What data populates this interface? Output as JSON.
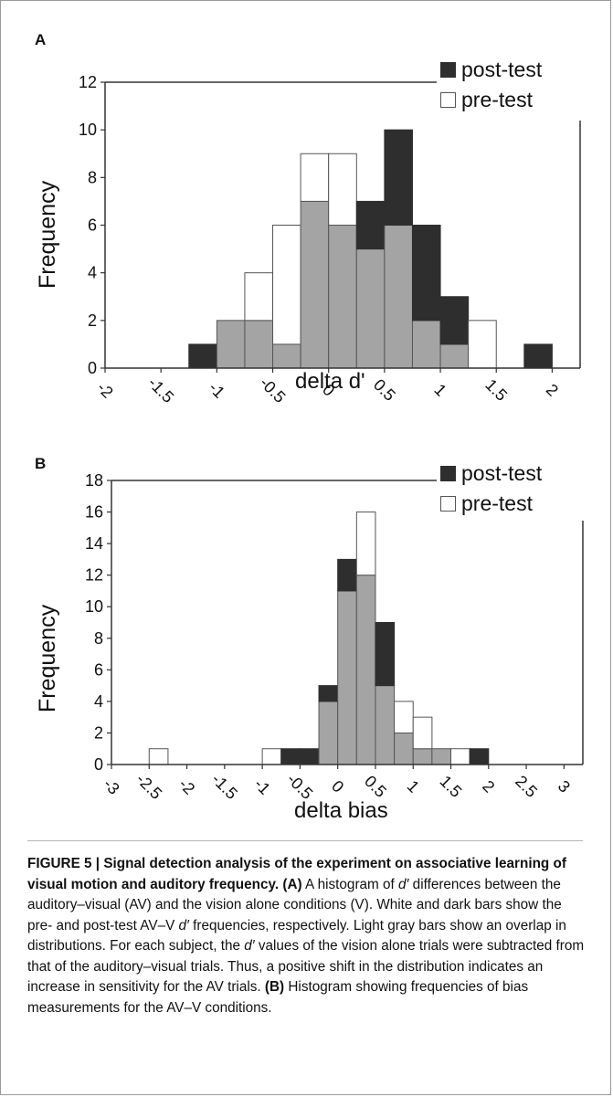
{
  "colors": {
    "post": "#2e2e2e",
    "pre": "#ffffff",
    "overlap": "#a4a4a4",
    "axis": "#333333"
  },
  "panels": {
    "a": {
      "letter": "A",
      "ylabel": "Frequency",
      "xlabel": "delta d'"
    },
    "b": {
      "letter": "B",
      "ylabel": "Frequency",
      "xlabel": "delta bias"
    }
  },
  "legend": {
    "post": "post-test",
    "pre": "pre-test"
  },
  "chart_data": [
    {
      "type": "bar",
      "panel": "A",
      "xlabel": "delta d'",
      "ylabel": "Frequency",
      "xlim": [
        -2,
        2.25
      ],
      "ylim": [
        0,
        12
      ],
      "xticks": [
        -2,
        -1.5,
        -1,
        -0.5,
        0,
        0.5,
        1,
        1.5,
        2
      ],
      "xtick_labels": [
        "-2",
        "-1.5",
        "-1",
        "-0.5",
        "0",
        "0.5",
        "1",
        "1.5",
        "2"
      ],
      "yticks": [
        0,
        2,
        4,
        6,
        8,
        10,
        12
      ],
      "bin_width": 0.25,
      "x": [
        -1.25,
        -1.0,
        -0.75,
        -0.5,
        -0.25,
        0.0,
        0.25,
        0.5,
        0.75,
        1.0,
        1.25,
        1.5,
        1.75
      ],
      "series": [
        {
          "name": "post-test",
          "values": [
            1,
            2,
            2,
            1,
            7,
            6,
            7,
            10,
            6,
            3,
            0,
            0,
            1
          ]
        },
        {
          "name": "pre-test",
          "values": [
            0,
            2,
            4,
            6,
            9,
            9,
            5,
            6,
            2,
            1,
            2,
            0,
            0
          ]
        }
      ],
      "legend": "top-right"
    },
    {
      "type": "bar",
      "panel": "B",
      "xlabel": "delta bias",
      "ylabel": "Frequency",
      "xlim": [
        -3,
        3.25
      ],
      "ylim": [
        0,
        18
      ],
      "xticks": [
        -3,
        -2.5,
        -2,
        -1.5,
        -1,
        -0.5,
        0,
        0.5,
        1,
        1.5,
        2,
        2.5,
        3
      ],
      "xtick_labels": [
        "-3",
        "-2.5",
        "-2",
        "-1.5",
        "-1",
        "-0.5",
        "0",
        "0.5",
        "1",
        "1.5",
        "2",
        "2.5",
        "3"
      ],
      "yticks": [
        0,
        2,
        4,
        6,
        8,
        10,
        12,
        14,
        16,
        18
      ],
      "bin_width": 0.25,
      "x": [
        -2.5,
        -1.0,
        -0.75,
        -0.5,
        -0.25,
        0.0,
        0.25,
        0.5,
        0.75,
        1.0,
        1.25,
        1.5,
        1.75
      ],
      "series": [
        {
          "name": "post-test",
          "values": [
            0,
            0,
            1,
            1,
            5,
            13,
            12,
            9,
            2,
            1,
            1,
            0,
            1
          ]
        },
        {
          "name": "pre-test",
          "values": [
            1,
            1,
            0,
            0,
            4,
            11,
            16,
            5,
            4,
            3,
            1,
            1,
            0
          ]
        }
      ],
      "legend": "top-right"
    }
  ],
  "caption": {
    "title": "FIGURE 5 | Signal detection analysis of the experiment on associative learning of visual motion and auditory frequency.",
    "label_a": "(A)",
    "text_a1": "A histogram of ",
    "d1": "d′",
    "text_a2": " differences between the auditory–visual (AV) and the vision alone conditions (V). White and dark bars show the pre- and post-test AV–V ",
    "d2": "d′",
    "text_a3": " frequencies, respectively. Light gray bars show an overlap in distributions. For each subject, the ",
    "d3": "d′",
    "text_a4": " values of the vision alone trials were subtracted from that of the auditory–visual trials. Thus, a positive shift in the distribution indicates an increase in sensitivity for the AV trials.",
    "label_b": "(B)",
    "text_b": "Histogram showing frequencies of bias measurements for the AV–V conditions."
  }
}
